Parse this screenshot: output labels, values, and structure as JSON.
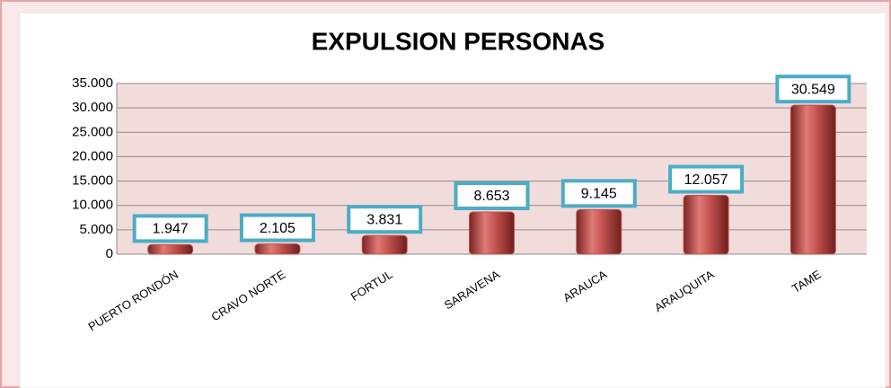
{
  "chart_data": {
    "type": "bar",
    "title": "EXPULSION PERSONAS",
    "categories": [
      "PUERTO RONDÓN",
      "CRAVO NORTE",
      "FORTUL",
      "SARAVENA",
      "ARAUCA",
      "ARAUQUITA",
      "TAME"
    ],
    "values": [
      1947,
      2105,
      3831,
      8653,
      9145,
      12057,
      30549
    ],
    "value_labels": [
      "1.947",
      "2.105",
      "3.831",
      "8.653",
      "9.145",
      "12.057",
      "30.549"
    ],
    "color": "#c0504d",
    "ylim": [
      0,
      35000
    ],
    "yticks": [
      0,
      {
        "value": 5000,
        "label": "5.000"
      },
      {
        "value": 10000,
        "label": "10.000"
      },
      {
        "value": 15000,
        "label": "15.000"
      },
      {
        "value": 20000,
        "label": "20.000"
      },
      {
        "value": 25000,
        "label": "25.000"
      },
      {
        "value": 30000,
        "label": "30.000"
      },
      {
        "value": 35000,
        "label": "35.000"
      }
    ],
    "grid": true
  }
}
